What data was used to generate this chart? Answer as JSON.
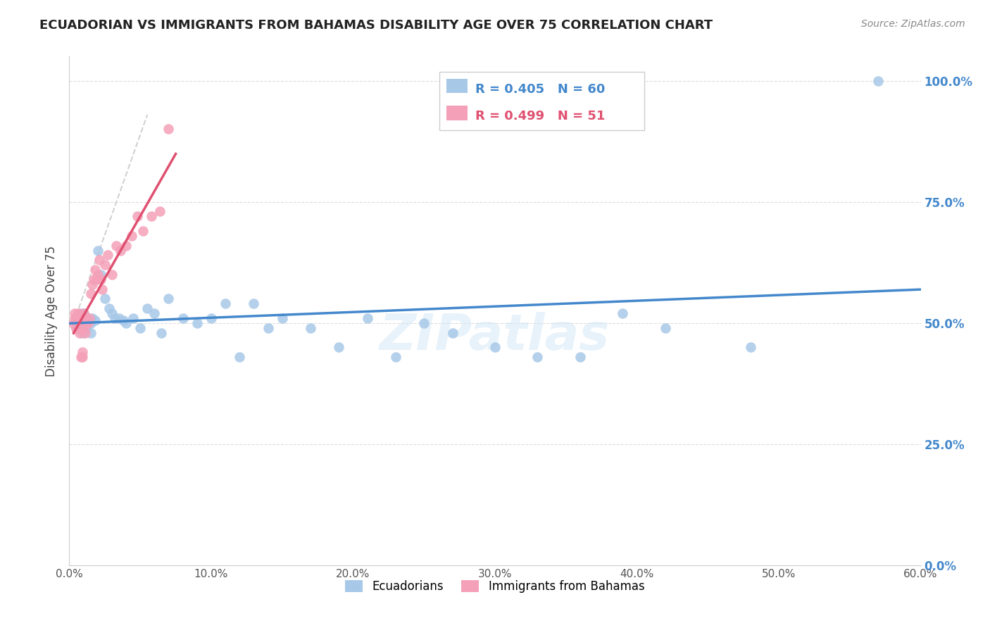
{
  "title": "ECUADORIAN VS IMMIGRANTS FROM BAHAMAS DISABILITY AGE OVER 75 CORRELATION CHART",
  "source": "Source: ZipAtlas.com",
  "ylabel": "Disability Age Over 75",
  "legend_label1": "Ecuadorians",
  "legend_label2": "Immigrants from Bahamas",
  "r1": 0.405,
  "n1": 60,
  "r2": 0.499,
  "n2": 51,
  "xmin": 0.0,
  "xmax": 0.6,
  "ymin": 0.0,
  "ymax": 1.05,
  "color_blue": "#a8c8e8",
  "color_pink": "#f4a0b8",
  "line_blue": "#4488cc",
  "line_pink": "#e05070",
  "line_diag": "#cccccc",
  "watermark": "ZIPatlas",
  "ecu_x": [
    0.005,
    0.005,
    0.005,
    0.005,
    0.007,
    0.007,
    0.008,
    0.008,
    0.008,
    0.009,
    0.009,
    0.01,
    0.01,
    0.01,
    0.01,
    0.01,
    0.012,
    0.012,
    0.013,
    0.014,
    0.015,
    0.015,
    0.016,
    0.018,
    0.02,
    0.022,
    0.025,
    0.028,
    0.03,
    0.032,
    0.035,
    0.038,
    0.04,
    0.045,
    0.05,
    0.055,
    0.06,
    0.065,
    0.07,
    0.08,
    0.09,
    0.1,
    0.11,
    0.12,
    0.13,
    0.14,
    0.15,
    0.17,
    0.19,
    0.21,
    0.23,
    0.25,
    0.27,
    0.3,
    0.33,
    0.36,
    0.39,
    0.42,
    0.48,
    0.57
  ],
  "ecu_y": [
    0.5,
    0.51,
    0.49,
    0.505,
    0.495,
    0.51,
    0.5,
    0.49,
    0.52,
    0.505,
    0.48,
    0.5,
    0.51,
    0.49,
    0.505,
    0.52,
    0.5,
    0.49,
    0.51,
    0.505,
    0.5,
    0.48,
    0.51,
    0.505,
    0.65,
    0.6,
    0.55,
    0.53,
    0.52,
    0.51,
    0.51,
    0.505,
    0.5,
    0.51,
    0.49,
    0.53,
    0.52,
    0.48,
    0.55,
    0.51,
    0.5,
    0.51,
    0.54,
    0.43,
    0.54,
    0.49,
    0.51,
    0.49,
    0.45,
    0.51,
    0.43,
    0.5,
    0.48,
    0.45,
    0.43,
    0.43,
    0.52,
    0.49,
    0.45,
    1.0
  ],
  "bah_x": [
    0.003,
    0.004,
    0.004,
    0.005,
    0.005,
    0.005,
    0.005,
    0.005,
    0.006,
    0.006,
    0.007,
    0.007,
    0.007,
    0.007,
    0.008,
    0.008,
    0.008,
    0.009,
    0.009,
    0.009,
    0.01,
    0.01,
    0.01,
    0.01,
    0.01,
    0.011,
    0.011,
    0.012,
    0.013,
    0.014,
    0.015,
    0.016,
    0.017,
    0.018,
    0.019,
    0.02,
    0.021,
    0.022,
    0.023,
    0.025,
    0.027,
    0.03,
    0.033,
    0.036,
    0.04,
    0.044,
    0.048,
    0.052,
    0.058,
    0.064,
    0.07
  ],
  "bah_y": [
    0.5,
    0.51,
    0.52,
    0.49,
    0.505,
    0.51,
    0.49,
    0.5,
    0.505,
    0.52,
    0.51,
    0.5,
    0.49,
    0.48,
    0.5,
    0.51,
    0.43,
    0.5,
    0.43,
    0.44,
    0.49,
    0.51,
    0.505,
    0.5,
    0.52,
    0.51,
    0.48,
    0.5,
    0.5,
    0.51,
    0.56,
    0.58,
    0.59,
    0.61,
    0.59,
    0.6,
    0.63,
    0.59,
    0.57,
    0.62,
    0.64,
    0.6,
    0.66,
    0.65,
    0.66,
    0.68,
    0.72,
    0.69,
    0.72,
    0.73,
    0.9
  ]
}
